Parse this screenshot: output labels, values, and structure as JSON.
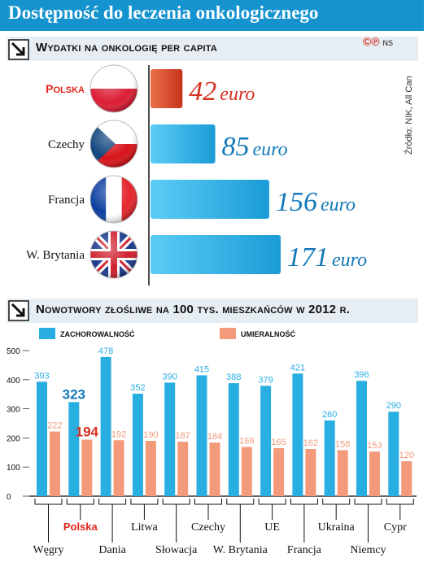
{
  "title": "Dostępność do leczenia onkologicznego",
  "badge": {
    "symbols": "©℗",
    "initials": "NS"
  },
  "source": "Źródło: NIK, All Can",
  "colors": {
    "blue": "#29aee2",
    "red": "#e05a35",
    "salmon": "#f39a7b",
    "navy": "#1479b8",
    "title_bg": "#1493cf",
    "section_bg": "#e6eef3"
  },
  "section1": {
    "title": "Wydatki na onkologię per capita"
  },
  "section2": {
    "title": "Nowotwory złośliwe na 100 tys. mieszkańców w 2012 r."
  },
  "chart_data": [
    {
      "type": "bar",
      "orientation": "horizontal",
      "title": "Wydatki na onkologię per capita",
      "categories": [
        "Polska",
        "Czechy",
        "Francja",
        "W. Brytania"
      ],
      "values": [
        42,
        85,
        156,
        171
      ],
      "value_labels": [
        {
          "num": "42",
          "unit": "euro"
        },
        {
          "num": "85",
          "unit": "euro"
        },
        {
          "num": "156",
          "unit": "euro"
        },
        {
          "num": "171",
          "unit": "euro"
        }
      ],
      "flags": [
        "flag-poland-icon",
        "flag-czechia-icon",
        "flag-france-icon",
        "flag-uk-icon"
      ],
      "highlight": "Polska"
    },
    {
      "type": "bar",
      "title": "Nowotwory złośliwe na 100 tys. mieszkańców w 2012 r.",
      "categories": [
        "Węgry",
        "Polska",
        "Dania",
        "Litwa",
        "Słowacja",
        "Czechy",
        "W. Brytania",
        "UE",
        "Francja",
        "Ukraina",
        "Niemcy",
        "Cypr"
      ],
      "series": [
        {
          "name": "zachorowalność",
          "values": [
            393,
            323,
            478,
            352,
            390,
            415,
            388,
            379,
            421,
            260,
            396,
            290
          ]
        },
        {
          "name": "umieralność",
          "values": [
            222,
            194,
            192,
            190,
            187,
            184,
            169,
            165,
            162,
            158,
            153,
            120
          ]
        }
      ],
      "ylim": [
        0,
        500
      ],
      "yticks": [
        "0",
        "100",
        "200",
        "300",
        "400",
        "500"
      ],
      "highlight": "Polska",
      "legend": "top-left",
      "grid": false
    }
  ]
}
